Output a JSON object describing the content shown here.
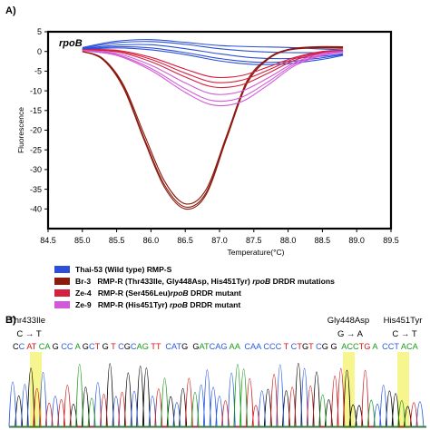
{
  "panel_a": {
    "label": "A)",
    "gene_label": "rpoB",
    "legend": [
      {
        "color": "#2b4fd8",
        "parts": [
          {
            "t": "Thai-53 (Wild type) RMP-S",
            "i": false
          }
        ]
      },
      {
        "color": "#8b1a0f",
        "parts": [
          {
            "t": "Br-3   RMP-R (Thr433Ile, Gly448Asp, His451Tyr) ",
            "i": false
          },
          {
            "t": "rpoB",
            "i": true
          },
          {
            "t": " DRDR mutations",
            "i": false
          }
        ]
      },
      {
        "color": "#d61f3f",
        "parts": [
          {
            "t": "Ze-4   RMP-R (Ser456Leu)",
            "i": false
          },
          {
            "t": "rpoB",
            "i": true
          },
          {
            "t": " DRDR mutant",
            "i": false
          }
        ]
      },
      {
        "color": "#d15ad8",
        "parts": [
          {
            "t": "Ze-9   RMP-R (His451Tyr) ",
            "i": false
          },
          {
            "t": "rpoB",
            "i": true
          },
          {
            "t": " DRDR mutant",
            "i": false
          }
        ]
      }
    ]
  },
  "panel_b": {
    "label": "B)",
    "mutations": [
      {
        "name": "Thr433Ile",
        "change": "C → T"
      },
      {
        "name": "Gly448Asp",
        "change": "G → A"
      },
      {
        "name": "His451Tyr",
        "change": "C → T"
      }
    ],
    "sequence_segments": [
      {
        "text": "C",
        "color": "#000000"
      },
      {
        "text": "C",
        "color": "#2a5be0"
      },
      {
        "text": " AT",
        "color": "#d01818"
      },
      {
        "text": " CA",
        "color": "#1a9a1a"
      },
      {
        "text": " G",
        "color": "#000000"
      },
      {
        "text": " CC",
        "color": "#2a5be0"
      },
      {
        "text": " A",
        "color": "#1a9a1a"
      },
      {
        "text": " G",
        "color": "#000000"
      },
      {
        "text": "C",
        "color": "#2a5be0"
      },
      {
        "text": "T",
        "color": "#d01818"
      },
      {
        "text": " G",
        "color": "#000000"
      },
      {
        "text": " T",
        "color": "#d01818"
      },
      {
        "text": " C",
        "color": "#2a5be0"
      },
      {
        "text": "G",
        "color": "#000000"
      },
      {
        "text": "C",
        "color": "#2a5be0"
      },
      {
        "text": "AG",
        "color": "#1a9a1a"
      },
      {
        "text": " TT",
        "color": "#d01818"
      },
      {
        "text": "  CAT",
        "color": "#2a5be0"
      },
      {
        "text": "G",
        "color": "#000000"
      },
      {
        "text": "  G",
        "color": "#000000"
      },
      {
        "text": "AT",
        "color": "#1a9a1a"
      },
      {
        "text": "CAG",
        "color": "#2a5be0"
      },
      {
        "text": " AA",
        "color": "#1a9a1a"
      },
      {
        "text": "  CAA",
        "color": "#2a5be0"
      },
      {
        "text": " CCC",
        "color": "#2a5be0"
      },
      {
        "text": " T",
        "color": "#d01818"
      },
      {
        "text": " C",
        "color": "#2a5be0"
      },
      {
        "text": "T",
        "color": "#d01818"
      },
      {
        "text": "G",
        "color": "#000000"
      },
      {
        "text": "T",
        "color": "#d01818"
      },
      {
        "text": " C",
        "color": "#2a5be0"
      },
      {
        "text": "G",
        "color": "#000000"
      },
      {
        "text": " G",
        "color": "#000000"
      },
      {
        "text": "  ACC",
        "color": "#1a9a1a"
      },
      {
        "text": "TG",
        "color": "#d01818"
      },
      {
        "text": " A",
        "color": "#1a9a1a"
      },
      {
        "text": "  CCT",
        "color": "#2a5be0"
      },
      {
        "text": " ACA",
        "color": "#1a9a1a"
      }
    ]
  },
  "chart_data": {
    "type": "line",
    "title": "rpoB",
    "xlabel": "Temperature(°C)",
    "ylabel": "Fluorescence",
    "xlim": [
      84.5,
      89.5
    ],
    "ylim": [
      -45,
      5
    ],
    "xticks": [
      "84.5",
      "85.0",
      "85.5",
      "86.0",
      "86.5",
      "87.0",
      "87.5",
      "88.0",
      "88.5",
      "89.0",
      "89.5"
    ],
    "yticks": [
      "5",
      "0",
      "-5",
      "-10",
      "-15",
      "-20",
      "-25",
      "-30",
      "-35",
      "-40"
    ],
    "legend_position": "below",
    "grid": false,
    "series_groups": [
      {
        "name": "Thai-53 (Wild type) RMP-S",
        "color": "#2b4fd8",
        "curves": [
          {
            "x": [
              85.0,
              85.5,
              86.0,
              86.5,
              87.0,
              87.5,
              88.0,
              88.5,
              88.8
            ],
            "y": [
              1.0,
              2.6,
              3.0,
              2.3,
              1.5,
              1.2,
              1.0,
              0.6,
              0.4
            ]
          },
          {
            "x": [
              85.0,
              85.5,
              86.0,
              86.5,
              87.0,
              87.5,
              88.0,
              88.5,
              88.8
            ],
            "y": [
              0.8,
              2.2,
              2.5,
              1.8,
              0.7,
              0.0,
              -0.3,
              -0.3,
              -0.2
            ]
          },
          {
            "x": [
              85.0,
              85.5,
              86.0,
              86.5,
              87.0,
              87.5,
              88.0,
              88.5,
              88.8
            ],
            "y": [
              0.7,
              1.6,
              1.7,
              0.7,
              -0.6,
              -1.6,
              -1.8,
              -1.2,
              -0.6
            ]
          },
          {
            "x": [
              85.0,
              85.5,
              86.0,
              86.5,
              87.0,
              87.5,
              88.0,
              88.5,
              88.8
            ],
            "y": [
              0.6,
              1.2,
              0.9,
              -0.3,
              -1.8,
              -2.7,
              -2.6,
              -1.6,
              -0.8
            ]
          },
          {
            "x": [
              85.0,
              85.5,
              86.0,
              86.5,
              87.0,
              87.5,
              88.0,
              88.5,
              88.8
            ],
            "y": [
              0.5,
              0.9,
              0.4,
              -0.8,
              -2.4,
              -3.3,
              -3.1,
              -2.0,
              -1.0
            ]
          }
        ]
      },
      {
        "name": "Br-3 RMP-R (Thr433Ile, Gly448Asp, His451Tyr)",
        "color": "#8b1a0f",
        "curves": [
          {
            "x": [
              85.0,
              85.3,
              85.6,
              85.9,
              86.2,
              86.5,
              86.8,
              87.1,
              87.4,
              87.7,
              88.0,
              88.4,
              88.8
            ],
            "y": [
              0,
              -2,
              -9,
              -22,
              -34,
              -39.5,
              -36,
              -22,
              -8,
              -2,
              0.5,
              1.2,
              1.2
            ]
          },
          {
            "x": [
              85.0,
              85.3,
              85.6,
              85.9,
              86.2,
              86.5,
              86.8,
              87.1,
              87.4,
              87.7,
              88.0,
              88.4,
              88.8
            ],
            "y": [
              0,
              -1.8,
              -8.5,
              -21,
              -33,
              -38.7,
              -35.2,
              -21.5,
              -7.5,
              -1.8,
              0.5,
              1.0,
              1.0
            ]
          },
          {
            "x": [
              85.0,
              85.3,
              85.6,
              85.9,
              86.2,
              86.5,
              86.8,
              87.1,
              87.4,
              87.7,
              88.0,
              88.4,
              88.8
            ],
            "y": [
              0,
              -2.1,
              -9.3,
              -22.5,
              -34.6,
              -40.0,
              -36.5,
              -22.3,
              -8.2,
              -2.1,
              0.3,
              0.9,
              0.8
            ]
          }
        ]
      },
      {
        "name": "Ze-4 RMP-R (Ser456Leu)",
        "color": "#d61f3f",
        "curves": [
          {
            "x": [
              85.0,
              85.5,
              86.0,
              86.5,
              86.9,
              87.3,
              87.7,
              88.1,
              88.5,
              88.8
            ],
            "y": [
              0.5,
              0.3,
              -1.5,
              -4.5,
              -6.5,
              -6.2,
              -4.0,
              -1.5,
              0.0,
              0.3
            ]
          },
          {
            "x": [
              85.0,
              85.5,
              86.0,
              86.5,
              86.9,
              87.3,
              87.7,
              88.1,
              88.5,
              88.8
            ],
            "y": [
              0.5,
              0.1,
              -2.0,
              -5.5,
              -7.8,
              -7.4,
              -4.8,
              -1.8,
              -0.2,
              0.2
            ]
          },
          {
            "x": [
              85.0,
              85.5,
              86.0,
              86.5,
              86.9,
              87.3,
              87.7,
              88.1,
              88.5,
              88.8
            ],
            "y": [
              0.4,
              -0.1,
              -2.6,
              -6.5,
              -9.0,
              -8.6,
              -5.6,
              -2.2,
              -0.4,
              0.1
            ]
          }
        ]
      },
      {
        "name": "Ze-9 RMP-R (His451Tyr)",
        "color": "#d15ad8",
        "curves": [
          {
            "x": [
              85.0,
              85.5,
              86.0,
              86.5,
              86.9,
              87.3,
              87.7,
              88.1,
              88.5,
              88.8
            ],
            "y": [
              0.3,
              -0.5,
              -3.5,
              -8.0,
              -10.8,
              -10.2,
              -6.8,
              -2.8,
              -0.5,
              0.0
            ]
          },
          {
            "x": [
              85.0,
              85.5,
              86.0,
              86.5,
              86.9,
              87.3,
              87.7,
              88.1,
              88.5,
              88.8
            ],
            "y": [
              0.3,
              -0.8,
              -4.3,
              -9.5,
              -12.5,
              -11.8,
              -7.8,
              -3.2,
              -0.8,
              -0.1
            ]
          },
          {
            "x": [
              85.0,
              85.5,
              86.0,
              86.5,
              86.9,
              87.3,
              87.7,
              88.1,
              88.5,
              88.8
            ],
            "y": [
              0.2,
              -1.0,
              -4.8,
              -10.4,
              -13.6,
              -12.9,
              -8.6,
              -3.6,
              -1.0,
              -0.2
            ]
          }
        ]
      }
    ]
  }
}
